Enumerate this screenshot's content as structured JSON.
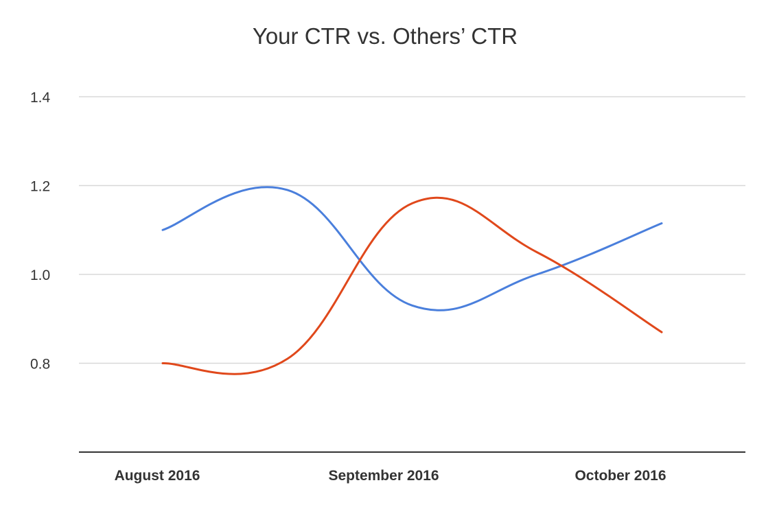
{
  "chart_data": {
    "type": "line",
    "title": "Your CTR vs. Others’ CTR",
    "xlabel": "",
    "ylabel": "",
    "categories": [
      "August 2016",
      "September 2016",
      "October 2016"
    ],
    "x": [
      0,
      0.5,
      1,
      1.5,
      2
    ],
    "ylim": [
      0.6,
      1.4
    ],
    "yticks": [
      "0.8",
      "1.0",
      "1.2",
      "1.4"
    ],
    "grid": true,
    "legend": "none",
    "series": [
      {
        "color": "#4a7fdc",
        "values": [
          1.1,
          1.19,
          0.93,
          1.0,
          1.115
        ]
      },
      {
        "color": "#e0481b",
        "values": [
          0.8,
          0.81,
          1.16,
          1.05,
          0.87
        ]
      }
    ]
  }
}
